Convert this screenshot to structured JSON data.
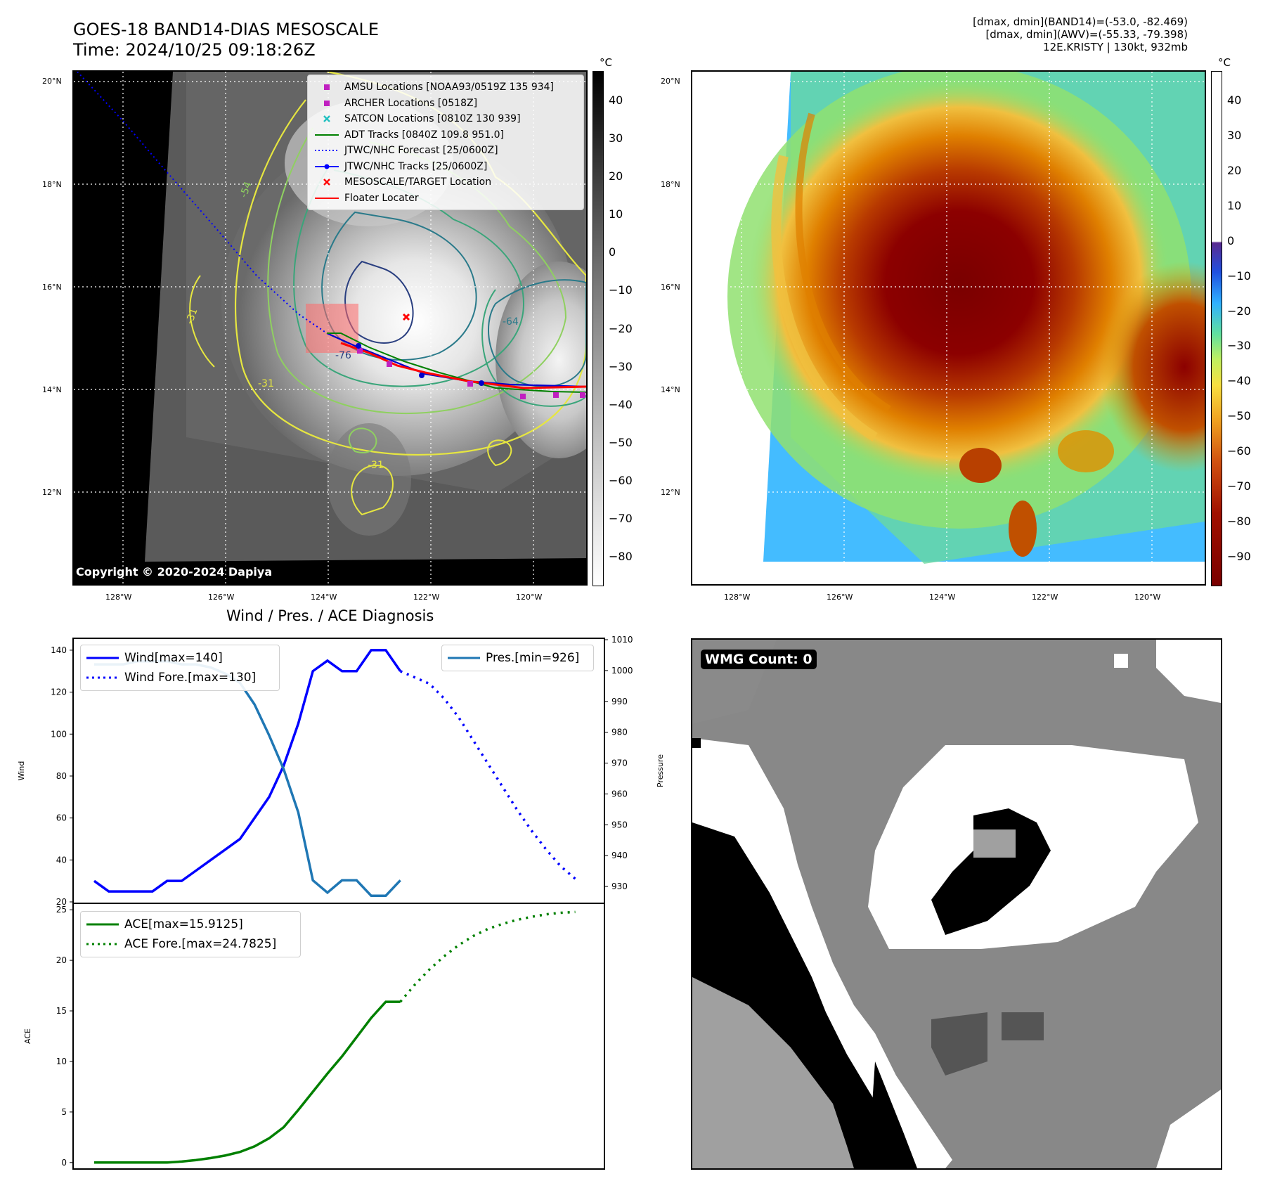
{
  "header": {
    "title_line1": "GOES-18 BAND14-DIAS MESOSCALE",
    "title_line2": "Time: 2024/10/25 09:18:26Z",
    "right_line1": "[dmax, dmin](BAND14)=(-53.0, -82.469)",
    "right_line2": "[dmax, dmin](AWV)=(-55.33, -79.398)",
    "right_line3": "12E.KRISTY | 130kt, 932mb"
  },
  "map_axes": {
    "lat_labels": [
      "20°N",
      "18°N",
      "16°N",
      "14°N",
      "12°N"
    ],
    "lon_labels": [
      "128°W",
      "126°W",
      "124°W",
      "122°W",
      "120°W"
    ]
  },
  "ir_panel": {
    "copyright": "Copyright © 2020-2024 Dapiya",
    "cbar_unit": "°C",
    "cbar_ticks": [
      "40",
      "30",
      "20",
      "10",
      "0",
      "−10",
      "−20",
      "−30",
      "−40",
      "−50",
      "−60",
      "−70",
      "−80"
    ],
    "contour_labels": [
      "-54",
      "-31",
      "-31",
      "-76",
      "-64",
      "-31"
    ],
    "legend": [
      {
        "label": "AMSU Locations [NOAA93/0519Z 135 934]",
        "symbol": "square",
        "color": "#c020c0"
      },
      {
        "label": "ARCHER Locations [0518Z]",
        "symbol": "square",
        "color": "#c020c0"
      },
      {
        "label": "SATCON Locations [0810Z 130 939]",
        "symbol": "x",
        "color": "#20c0c0"
      },
      {
        "label": "ADT Tracks [0840Z 109.8 951.0]",
        "symbol": "line",
        "color": "#008000"
      },
      {
        "label": "JTWC/NHC Forecast [25/0600Z]",
        "symbol": "dotted",
        "color": "#0000ff"
      },
      {
        "label": "JTWC/NHC Tracks [25/0600Z]",
        "symbol": "line-dot",
        "color": "#0000ff"
      },
      {
        "label": "MESOSCALE/TARGET Location",
        "symbol": "x",
        "color": "#ff0000"
      },
      {
        "label": "Floater Locater",
        "symbol": "line",
        "color": "#ff0000"
      }
    ]
  },
  "awv_panel": {
    "cbar_unit": "°C",
    "cbar_ticks": [
      "40",
      "30",
      "20",
      "10",
      "0",
      "−10",
      "−20",
      "−30",
      "−40",
      "−50",
      "−60",
      "−70",
      "−80",
      "−90"
    ]
  },
  "diagnosis_title": "Wind / Pres. / ACE Diagnosis",
  "wmg_panel": {
    "label": "WMG Count: 0"
  },
  "chart_data": [
    {
      "type": "line",
      "title": "Wind / Pres. / ACE Diagnosis",
      "ylabel": "Wind",
      "y2label": "Pressure",
      "ylim": [
        20,
        145
      ],
      "y2lim": [
        925,
        1010
      ],
      "yticks": [
        "140",
        "120",
        "100",
        "80",
        "60",
        "40",
        "20"
      ],
      "y2ticks": [
        "1010",
        "1000",
        "990",
        "980",
        "970",
        "960",
        "950",
        "940",
        "930"
      ],
      "series": [
        {
          "name": "Wind[max=140]",
          "axis": "left",
          "color": "#0000ff",
          "style": "solid",
          "x": [
            0,
            1,
            2,
            3,
            4,
            5,
            6,
            7,
            8,
            9,
            10,
            11,
            12,
            13,
            14,
            15,
            16,
            17,
            18,
            19,
            20,
            21
          ],
          "values": [
            30,
            25,
            25,
            25,
            25,
            30,
            30,
            35,
            40,
            45,
            50,
            60,
            70,
            85,
            105,
            130,
            135,
            130,
            130,
            140,
            140,
            130
          ]
        },
        {
          "name": "Wind Fore.[max=130]",
          "axis": "left",
          "color": "#0000ff",
          "style": "dotted",
          "x": [
            21,
            22,
            23,
            24,
            25,
            26,
            27,
            28,
            29,
            30,
            31,
            32,
            33
          ],
          "values": [
            130,
            127,
            124,
            117,
            108,
            97,
            86,
            75,
            64,
            54,
            45,
            37,
            31
          ]
        },
        {
          "name": "Pres.[min=926]",
          "axis": "right",
          "color": "#1f77b4",
          "style": "solid",
          "x": [
            0,
            1,
            2,
            3,
            4,
            5,
            6,
            7,
            8,
            9,
            10,
            11,
            12,
            13,
            14,
            15,
            16,
            17,
            18,
            19,
            20,
            21
          ],
          "values": [
            1002,
            1002,
            1002,
            1003,
            1003,
            1003,
            1002,
            1002,
            1001,
            999,
            996,
            989,
            979,
            968,
            954,
            932,
            928,
            932,
            932,
            927,
            927,
            932
          ]
        }
      ]
    },
    {
      "type": "line",
      "ylabel": "ACE",
      "ylim": [
        -0.5,
        25.5
      ],
      "yticks": [
        "25",
        "20",
        "15",
        "10",
        "5",
        "0"
      ],
      "series": [
        {
          "name": "ACE[max=15.9125]",
          "color": "#008000",
          "style": "solid",
          "x": [
            0,
            1,
            2,
            3,
            4,
            5,
            6,
            7,
            8,
            9,
            10,
            11,
            12,
            13,
            14,
            15,
            16,
            17,
            18,
            19,
            20,
            21
          ],
          "values": [
            0,
            0,
            0,
            0,
            0,
            0,
            0.1,
            0.25,
            0.45,
            0.7,
            1.05,
            1.6,
            2.4,
            3.5,
            5.2,
            7.0,
            8.8,
            10.5,
            12.4,
            14.3,
            15.9,
            15.9
          ]
        },
        {
          "name": "ACE Fore.[max=24.7825]",
          "color": "#008000",
          "style": "dotted",
          "x": [
            21,
            22,
            23,
            24,
            25,
            26,
            27,
            28,
            29,
            30,
            31,
            32,
            33
          ],
          "values": [
            15.9,
            17.6,
            19.1,
            20.4,
            21.5,
            22.4,
            23.1,
            23.6,
            24.0,
            24.3,
            24.55,
            24.7,
            24.78
          ]
        }
      ]
    }
  ]
}
